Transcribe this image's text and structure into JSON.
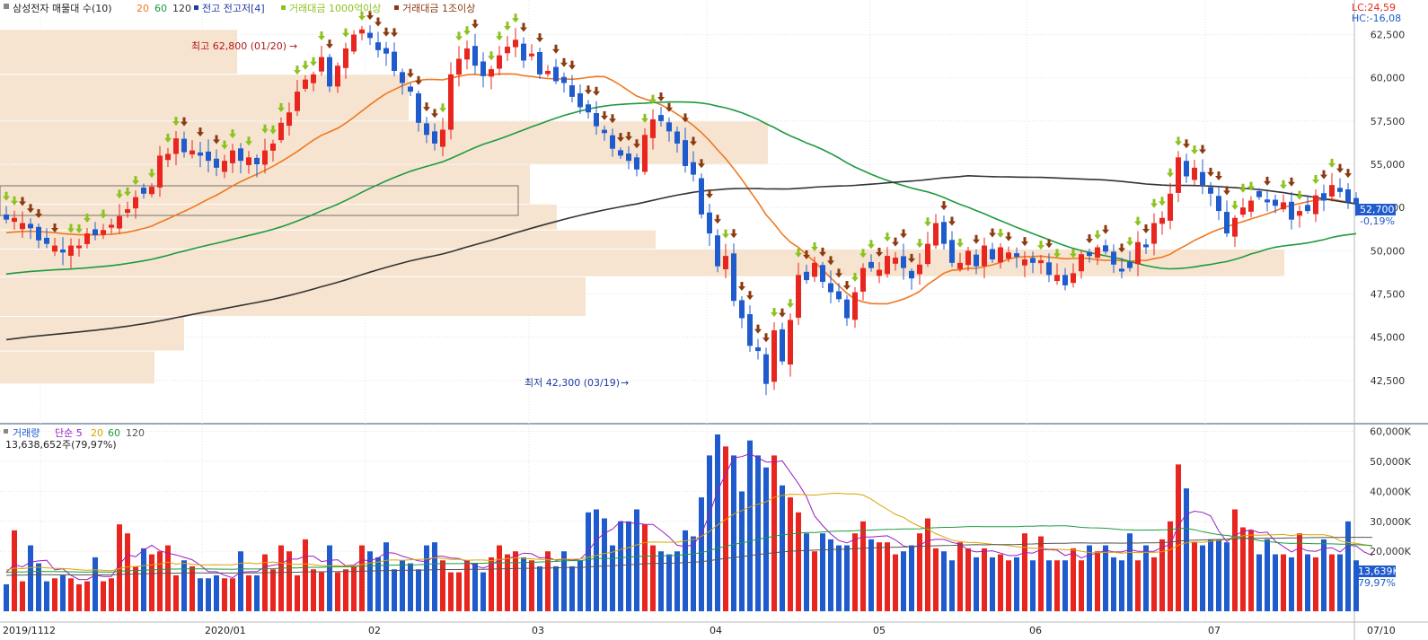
{
  "legend": {
    "title": "삼성전자 매물대 수(10)",
    "ma_20": "20",
    "ma_60": "60",
    "ma_120": "120",
    "high_low_label": "전고 전고저[4]",
    "trade_amt_1000": "거래대금 1000억이상",
    "trade_amt_1t": "거래대금 1조이상"
  },
  "indicators": {
    "lc": "LC:24,59",
    "hc": "HC:-16,08"
  },
  "annotations": {
    "high_label": "최고 62,800 (01/20)",
    "high_arrow": "→",
    "low_label": "최저 42,300 (03/19)",
    "low_arrow": "→"
  },
  "current_price": {
    "value": "52,700",
    "change": "-0,19%"
  },
  "volume_legend": {
    "title": "거래량",
    "simple": "단순 5",
    "ma_20": "20",
    "ma_60": "60",
    "ma_120": "120",
    "current": "13,638,652주(79,97%)"
  },
  "volume_tag": {
    "value": "13,639K",
    "pct": "79,97%"
  },
  "x_labels": [
    "2019/11",
    "12",
    "2020/01",
    "02",
    "03",
    "04",
    "05",
    "06",
    "07"
  ],
  "x_end_label": "07/10",
  "colors": {
    "up": "#e8251f",
    "down": "#1f5bcc",
    "ma20": "#f07820",
    "ma60": "#1e9a40",
    "ma120": "#333333",
    "vp": "#f6e4d0",
    "up_arrow": "#8cc21e",
    "down_arrow": "#8b3a10"
  },
  "chart_data": {
    "type": "candlestick",
    "price_axis": {
      "ylim": [
        40000,
        64500
      ],
      "ticks": [
        42500,
        45000,
        47500,
        50000,
        52500,
        55000,
        57500,
        60000,
        62500
      ],
      "tick_labels": [
        "42,500",
        "45,000",
        "47,500",
        "50,000",
        "52,500",
        "55,000",
        "57,500",
        "60,000",
        "62,500"
      ]
    },
    "volume_axis": {
      "ylim": [
        0,
        62000
      ],
      "ticks": [
        20000,
        30000,
        40000,
        50000,
        60000
      ],
      "tick_labels": [
        "20,000K",
        "30,000K",
        "40,000K",
        "50,000K",
        "60,000K"
      ]
    },
    "closes": [
      51800,
      51900,
      51600,
      51300,
      50600,
      50400,
      50300,
      49900,
      50300,
      50300,
      51000,
      50900,
      51200,
      51500,
      52000,
      52400,
      53100,
      53300,
      53700,
      55500,
      55600,
      56500,
      55700,
      55800,
      55500,
      55200,
      54800,
      55200,
      55800,
      55200,
      55400,
      55000,
      55800,
      56200,
      57400,
      58000,
      59200,
      59900,
      60200,
      61200,
      59500,
      60700,
      61700,
      62500,
      62800,
      62300,
      61600,
      61400,
      60400,
      59700,
      59200,
      57400,
      56700,
      56200,
      57000,
      60200,
      61100,
      61700,
      60700,
      60100,
      60500,
      61300,
      61800,
      62200,
      61000,
      61400,
      60200,
      60400,
      59800,
      59700,
      58900,
      58300,
      58000,
      57200,
      56800,
      55900,
      55500,
      55200,
      54700,
      56700,
      57600,
      57500,
      56900,
      56200,
      54900,
      54400,
      52100,
      51000,
      49100,
      49700,
      47100,
      46100,
      44500,
      44200,
      42300,
      45400,
      43600,
      46000,
      48600,
      48300,
      49300,
      48200,
      47600,
      47200,
      46100,
      47600,
      49000,
      49000,
      48900,
      49700,
      49600,
      49000,
      48400,
      49200,
      50400,
      51600,
      50400,
      49300,
      49300,
      50000,
      49100,
      50300,
      49500,
      50200,
      49900,
      49650,
      49500,
      49300,
      49450,
      48600,
      48600,
      48000,
      48700,
      49800,
      49700,
      50200,
      49950,
      49200,
      48800,
      49000,
      50500,
      50200,
      51600,
      51900,
      53300,
      55400,
      54300,
      54800,
      53800,
      53300,
      52300,
      51000,
      51900,
      52500,
      52900,
      53100,
      52800,
      52600,
      52800,
      51800,
      52300,
      52300,
      53200,
      52900,
      53800,
      53400,
      52800,
      52700
    ],
    "volume": [
      9,
      27,
      10,
      22,
      16,
      10,
      11,
      12,
      11,
      9,
      10,
      18,
      10,
      11,
      29,
      26,
      15,
      21,
      19,
      20,
      22,
      12,
      17,
      15,
      11,
      11,
      12,
      11,
      11,
      20,
      12,
      12,
      19,
      14,
      22,
      20,
      12,
      24,
      14,
      13,
      22,
      13,
      14,
      15,
      22,
      20,
      18,
      23,
      14,
      17,
      16,
      14,
      22,
      23,
      17,
      13,
      13,
      17,
      16,
      13,
      18,
      22,
      19,
      20,
      18,
      17,
      15,
      20,
      15,
      20,
      15,
      17,
      33,
      34,
      31,
      22,
      30,
      30,
      34,
      29,
      22,
      20,
      19,
      20,
      27,
      25,
      38,
      52,
      59,
      55,
      52,
      40,
      57,
      52,
      48,
      52,
      42,
      38,
      33,
      26,
      20,
      26,
      24,
      22,
      22,
      26,
      30,
      24,
      23,
      23,
      19,
      20,
      22,
      26,
      31,
      21,
      20,
      17,
      23,
      21,
      18,
      21,
      18,
      19,
      17,
      18,
      26,
      17,
      25,
      17,
      17,
      17,
      21,
      17,
      22,
      20,
      22,
      18,
      17,
      26,
      17,
      22,
      18,
      24,
      30,
      49,
      41,
      23,
      22,
      24,
      24,
      23,
      34,
      28,
      27,
      19,
      24,
      19,
      19,
      18,
      26,
      19,
      18,
      24,
      19,
      19,
      30,
      17,
      14,
      13
    ]
  }
}
